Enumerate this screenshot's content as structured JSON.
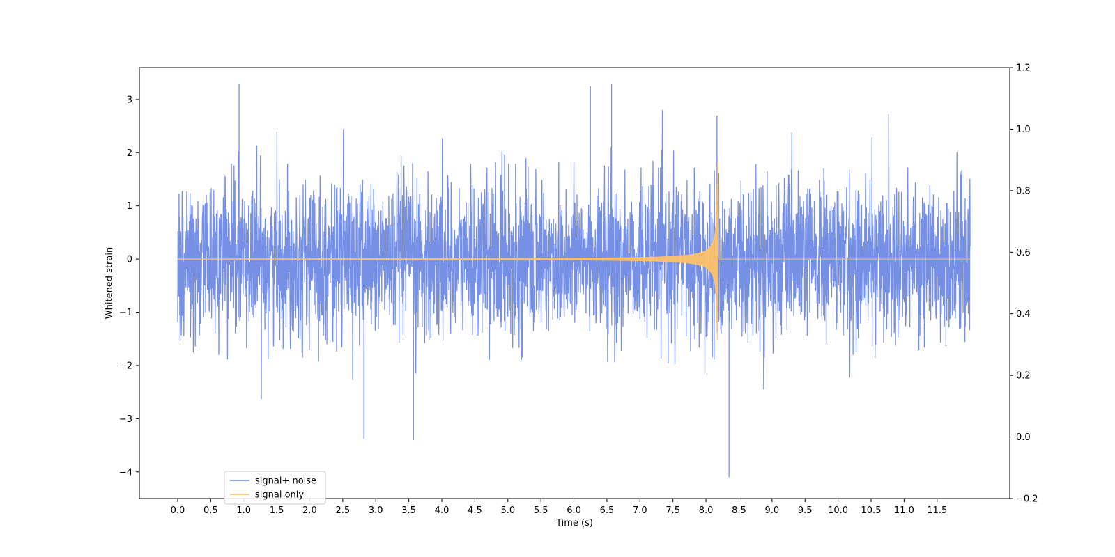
{
  "chart_data": {
    "type": "line",
    "title": "",
    "xlabel": "Time (s)",
    "ylabel": "Whitened strain",
    "xlim": [
      -0.58,
      12.6
    ],
    "ylim": [
      -4.5,
      3.6
    ],
    "y2lim": [
      -0.2,
      1.2
    ],
    "x_ticks": [
      "0.0",
      "0.5",
      "1.0",
      "1.5",
      "2.0",
      "2.5",
      "3.0",
      "3.5",
      "4.0",
      "4.5",
      "5.0",
      "5.5",
      "6.0",
      "6.5",
      "7.0",
      "7.5",
      "8.0",
      "8.5",
      "9.0",
      "9.5",
      "10.0",
      "10.5",
      "11.0",
      "11.5"
    ],
    "y_ticks": [
      "−4",
      "−3",
      "−2",
      "−1",
      "0",
      "1",
      "2",
      "3"
    ],
    "y2_ticks": [
      "−0.2",
      "0.0",
      "0.2",
      "0.4",
      "0.6",
      "0.8",
      "1.0",
      "1.2"
    ],
    "grid": false,
    "legend_location": "lower-left",
    "series": [
      {
        "name": "signal+ noise",
        "color": "#6a87e3",
        "description": "Gaussian-like noise band plus chirp; typical envelope about +/-1.8, spikes to ~3.3 and ~-4.1",
        "time_range": [
          0.0,
          12.0
        ],
        "typical_envelope": 1.8,
        "max_peak": 3.3,
        "min_peak": -4.1
      },
      {
        "name": "signal only",
        "color": "#ffc266",
        "description": "Chirp signal with growing amplitude, merger near t=8.18 s, then flat",
        "time_range": [
          0.0,
          12.0
        ],
        "merger_time": 8.18,
        "peak_amplitude_pos": 1.85,
        "peak_amplitude_neg": -1.52
      }
    ],
    "annotations": [
      {
        "x": 0.93,
        "y": 3.3
      },
      {
        "x": 6.25,
        "y": 3.25
      },
      {
        "x": 6.57,
        "y": 3.3
      },
      {
        "x": 8.35,
        "y": -4.1
      },
      {
        "x": 3.57,
        "y": -3.4
      },
      {
        "x": 2.82,
        "y": -3.38
      }
    ]
  }
}
